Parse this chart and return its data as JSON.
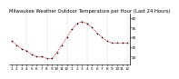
{
  "title": "Milwaukee Weather Outdoor Temperature per Hour (Last 24 Hours)",
  "x_labels": [
    "1",
    "2",
    "3",
    "4",
    "5",
    "6",
    "7",
    "8",
    "9",
    "10",
    "11",
    "12",
    "1",
    "2",
    "3",
    "4",
    "5",
    "6",
    "7",
    "8",
    "9",
    "10",
    "11",
    "12"
  ],
  "temperatures": [
    28,
    26,
    24,
    23,
    21,
    20,
    20,
    19,
    19,
    22,
    26,
    30,
    34,
    37,
    38,
    37,
    35,
    32,
    30,
    28,
    27,
    27,
    27,
    27
  ],
  "line_color": "#cc0000",
  "marker_color": "#000000",
  "grid_color": "#888888",
  "bg_color": "#ffffff",
  "plot_bg_color": "#ffffff",
  "title_fontsize": 3.8,
  "tick_fontsize": 3.0,
  "ylim": [
    16,
    42
  ],
  "ytick_values": [
    20,
    25,
    30,
    35,
    40
  ],
  "ytick_labels": [
    "20",
    "25",
    "30",
    "35",
    "40"
  ]
}
